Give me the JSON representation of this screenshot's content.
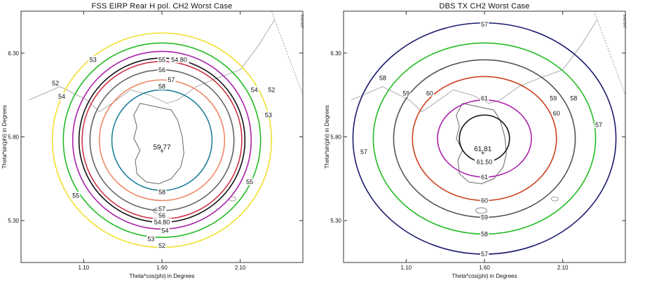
{
  "chart_data": [
    {
      "type": "contour",
      "title": "FSS EIRP Rear H pol. CH2 Worst Case",
      "xlabel": "Theta*cos(phi) in Degrees",
      "ylabel": "Theta*sin(phi) in Degrees",
      "xlim": [
        0.7,
        2.5
      ],
      "ylim": [
        5.05,
        6.55
      ],
      "xticks": [
        "1.10",
        "1.60",
        "2.10"
      ],
      "yticks": [
        "5.30",
        "5.80",
        "6.30"
      ],
      "side_code": "SAMSAT",
      "peak": {
        "label": "59.77",
        "x": 1.6,
        "y": 5.75
      },
      "center": {
        "x": 1.6,
        "y": 5.78
      },
      "contours": [
        {
          "level": "52",
          "rx": 0.7,
          "ry": 0.64,
          "color": "#f0e030",
          "labels": [
            {
              "text": "52",
              "x": 0.92,
              "y": 6.12
            },
            {
              "text": "52",
              "x": 2.3,
              "y": 6.08
            },
            {
              "text": "52",
              "x": 1.6,
              "y": 5.15
            }
          ]
        },
        {
          "level": "53",
          "rx": 0.63,
          "ry": 0.58,
          "color": "#22bb22",
          "labels": [
            {
              "text": "53",
              "x": 1.16,
              "y": 6.26
            },
            {
              "text": "53",
              "x": 2.28,
              "y": 5.93
            },
            {
              "text": "53",
              "x": 1.53,
              "y": 5.19
            }
          ]
        },
        {
          "level": "54",
          "rx": 0.57,
          "ry": 0.53,
          "color": "#aa22aa",
          "labels": [
            {
              "text": "54",
              "x": 0.96,
              "y": 6.04
            },
            {
              "text": "54",
              "x": 2.19,
              "y": 6.08
            },
            {
              "text": "54",
              "x": 1.62,
              "y": 5.24
            }
          ]
        },
        {
          "level": "54.80",
          "rx": 0.53,
          "ry": 0.49,
          "color": "#111111",
          "labels": [
            {
              "text": "54.80",
              "x": 1.71,
              "y": 6.26
            },
            {
              "text": "54.80",
              "x": 1.6,
              "y": 5.29
            }
          ]
        },
        {
          "level": "55",
          "rx": 0.51,
          "ry": 0.47,
          "color": "#cc3344",
          "labels": [
            {
              "text": "55",
              "x": 1.6,
              "y": 6.26
            },
            {
              "text": "55",
              "x": 1.05,
              "y": 5.45
            },
            {
              "text": "55",
              "x": 2.16,
              "y": 5.53
            }
          ]
        },
        {
          "level": "56",
          "rx": 0.46,
          "ry": 0.42,
          "color": "#666666",
          "labels": [
            {
              "text": "56",
              "x": 1.6,
              "y": 6.2
            },
            {
              "text": "56",
              "x": 1.6,
              "y": 5.33
            }
          ]
        },
        {
          "level": "57",
          "rx": 0.4,
          "ry": 0.36,
          "color": "#ee8866",
          "labels": [
            {
              "text": "57",
              "x": 1.66,
              "y": 6.14
            },
            {
              "text": "57",
              "x": 1.6,
              "y": 5.37
            }
          ]
        },
        {
          "level": "58",
          "rx": 0.32,
          "ry": 0.3,
          "color": "#1f7f9a",
          "labels": [
            {
              "text": "58",
              "x": 1.6,
              "y": 6.1
            },
            {
              "text": "58",
              "x": 1.6,
              "y": 5.47
            }
          ]
        }
      ]
    },
    {
      "type": "contour",
      "title": "DBS TX CH2 Worst Case",
      "xlabel": "Theta*cos(phi) in Degrees",
      "ylabel": "Theta*sin(phi) in Degrees",
      "xlim": [
        0.7,
        2.5
      ],
      "ylim": [
        5.05,
        6.55
      ],
      "xticks": [
        "1.10",
        "1.60",
        "2.10"
      ],
      "yticks": [
        "5.30",
        "5.80",
        "6.30"
      ],
      "side_code": "SAMSAT",
      "peak": {
        "label": "61.81",
        "x": 1.59,
        "y": 5.74
      },
      "center": {
        "x": 1.6,
        "y": 5.79
      },
      "contours": [
        {
          "level": "57",
          "rx": 0.84,
          "ry": 0.69,
          "color": "#1a1a6e",
          "labels": [
            {
              "text": "57",
              "x": 1.6,
              "y": 6.47
            },
            {
              "text": "57",
              "x": 0.83,
              "y": 5.71
            },
            {
              "text": "57",
              "x": 2.33,
              "y": 5.87
            },
            {
              "text": "57",
              "x": 1.6,
              "y": 5.1
            }
          ]
        },
        {
          "level": "58",
          "rx": 0.71,
          "ry": 0.57,
          "color": "#22bb22",
          "labels": [
            {
              "text": "58",
              "x": 0.95,
              "y": 6.15
            },
            {
              "text": "58",
              "x": 2.17,
              "y": 6.03
            },
            {
              "text": "58",
              "x": 1.6,
              "y": 5.22
            }
          ]
        },
        {
          "level": "59",
          "rx": 0.58,
          "ry": 0.47,
          "color": "#555555",
          "labels": [
            {
              "text": "59",
              "x": 1.1,
              "y": 6.06
            },
            {
              "text": "59",
              "x": 2.04,
              "y": 6.03
            },
            {
              "text": "59",
              "x": 1.6,
              "y": 5.32
            }
          ]
        },
        {
          "level": "60",
          "rx": 0.46,
          "ry": 0.37,
          "color": "#cc4422",
          "labels": [
            {
              "text": "60",
              "x": 1.25,
              "y": 6.06
            },
            {
              "text": "60",
              "x": 2.06,
              "y": 5.94
            },
            {
              "text": "60",
              "x": 1.6,
              "y": 5.42
            }
          ]
        },
        {
          "level": "61",
          "rx": 0.3,
          "ry": 0.23,
          "color": "#aa22aa",
          "labels": [
            {
              "text": "61",
              "x": 1.6,
              "y": 6.03
            },
            {
              "text": "61",
              "x": 1.6,
              "y": 5.56
            }
          ]
        },
        {
          "level": "61.50",
          "rx": 0.16,
          "ry": 0.14,
          "color": "#111111",
          "labels": [
            {
              "text": "61.50",
              "x": 1.6,
              "y": 5.65
            }
          ]
        }
      ]
    }
  ]
}
